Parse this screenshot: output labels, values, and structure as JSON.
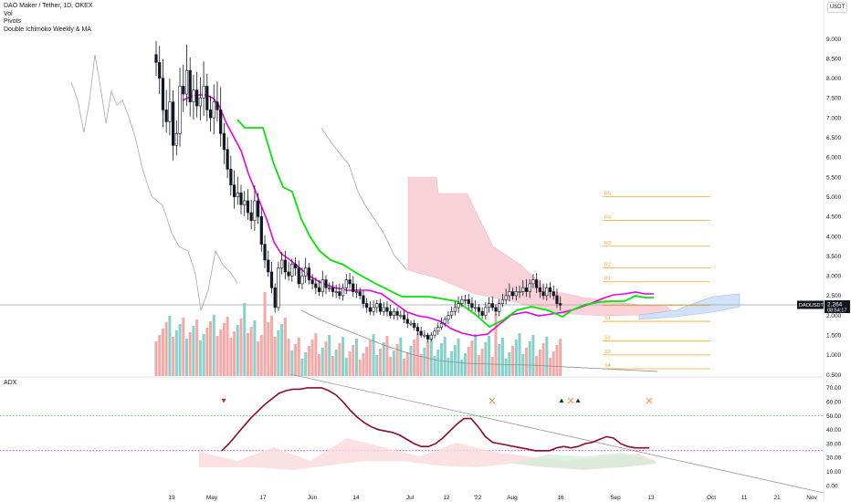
{
  "legend": {
    "symbol": "DAO Maker / Tether, 1D, OKEX",
    "items": [
      "Vol",
      "Pivots",
      "Double Ichimoko Weekly & MA"
    ]
  },
  "currency": "USDT",
  "price_label": {
    "value": "2.264",
    "symbol": "DAOUSDT",
    "countdown": "08:54:17"
  },
  "colors": {
    "up": "#26a69a",
    "down": "#ef5350",
    "candle": "#131722",
    "fast_ma": "#e600e6",
    "slow_ma": "#00e600",
    "pivot": "#f5a623",
    "cloud_red": "#f8c8d0",
    "cloud_blue": "#c9dcf7",
    "adx": "#8b0a2a"
  },
  "chart_data": [
    {
      "type": "candlestick",
      "pane": "price",
      "y_scale": "log",
      "ylim": [
        0.5,
        9.5
      ],
      "y_ticks": [
        "9.000",
        "8.500",
        "8.000",
        "7.500",
        "7.000",
        "6.500",
        "6.000",
        "5.500",
        "5.000",
        "4.500",
        "4.000",
        "3.500",
        "3.000",
        "2.500",
        "2.000",
        "1.500",
        "1.000",
        "0.500"
      ],
      "x_ticks": [
        "19",
        "May",
        "17",
        "Jun",
        "14",
        "Jul",
        "12",
        "'22",
        "Aug",
        "16",
        "Sep",
        "13",
        "Oct",
        "11",
        "21",
        "Nov"
      ],
      "pivots": [
        {
          "label": "R5",
          "value": 5.0
        },
        {
          "label": "R4",
          "value": 4.4
        },
        {
          "label": "R3",
          "value": 3.75
        },
        {
          "label": "R2",
          "value": 3.2
        },
        {
          "label": "R1",
          "value": 2.85
        },
        {
          "label": "P",
          "value": 2.25
        },
        {
          "label": "S1",
          "value": 1.85
        },
        {
          "label": "S2",
          "value": 1.35
        },
        {
          "label": "S3",
          "value": 1.0
        },
        {
          "label": "S4",
          "value": 0.65
        }
      ],
      "last_price": 2.264
    },
    {
      "type": "line",
      "pane": "adx",
      "title": "ADX",
      "ylim": [
        0,
        75
      ],
      "y_ticks": [
        "70.00",
        "60.00",
        "50.00",
        "40.00",
        "30.00",
        "20.00",
        "10.00",
        "0.00"
      ],
      "levels": [
        50,
        25
      ],
      "adx": [
        25,
        30,
        36,
        42,
        48,
        53,
        58,
        62,
        66,
        68,
        69,
        69,
        70,
        70,
        70,
        68,
        65,
        60,
        54,
        49,
        45,
        42,
        40,
        39,
        38,
        36,
        33,
        30,
        28,
        28,
        30,
        34,
        39,
        44,
        48,
        48,
        42,
        35,
        31,
        30,
        29,
        28,
        27,
        26,
        25,
        25,
        25,
        27,
        28,
        27,
        28,
        30,
        31,
        33,
        35,
        34,
        30,
        28,
        27,
        27,
        27
      ]
    }
  ]
}
